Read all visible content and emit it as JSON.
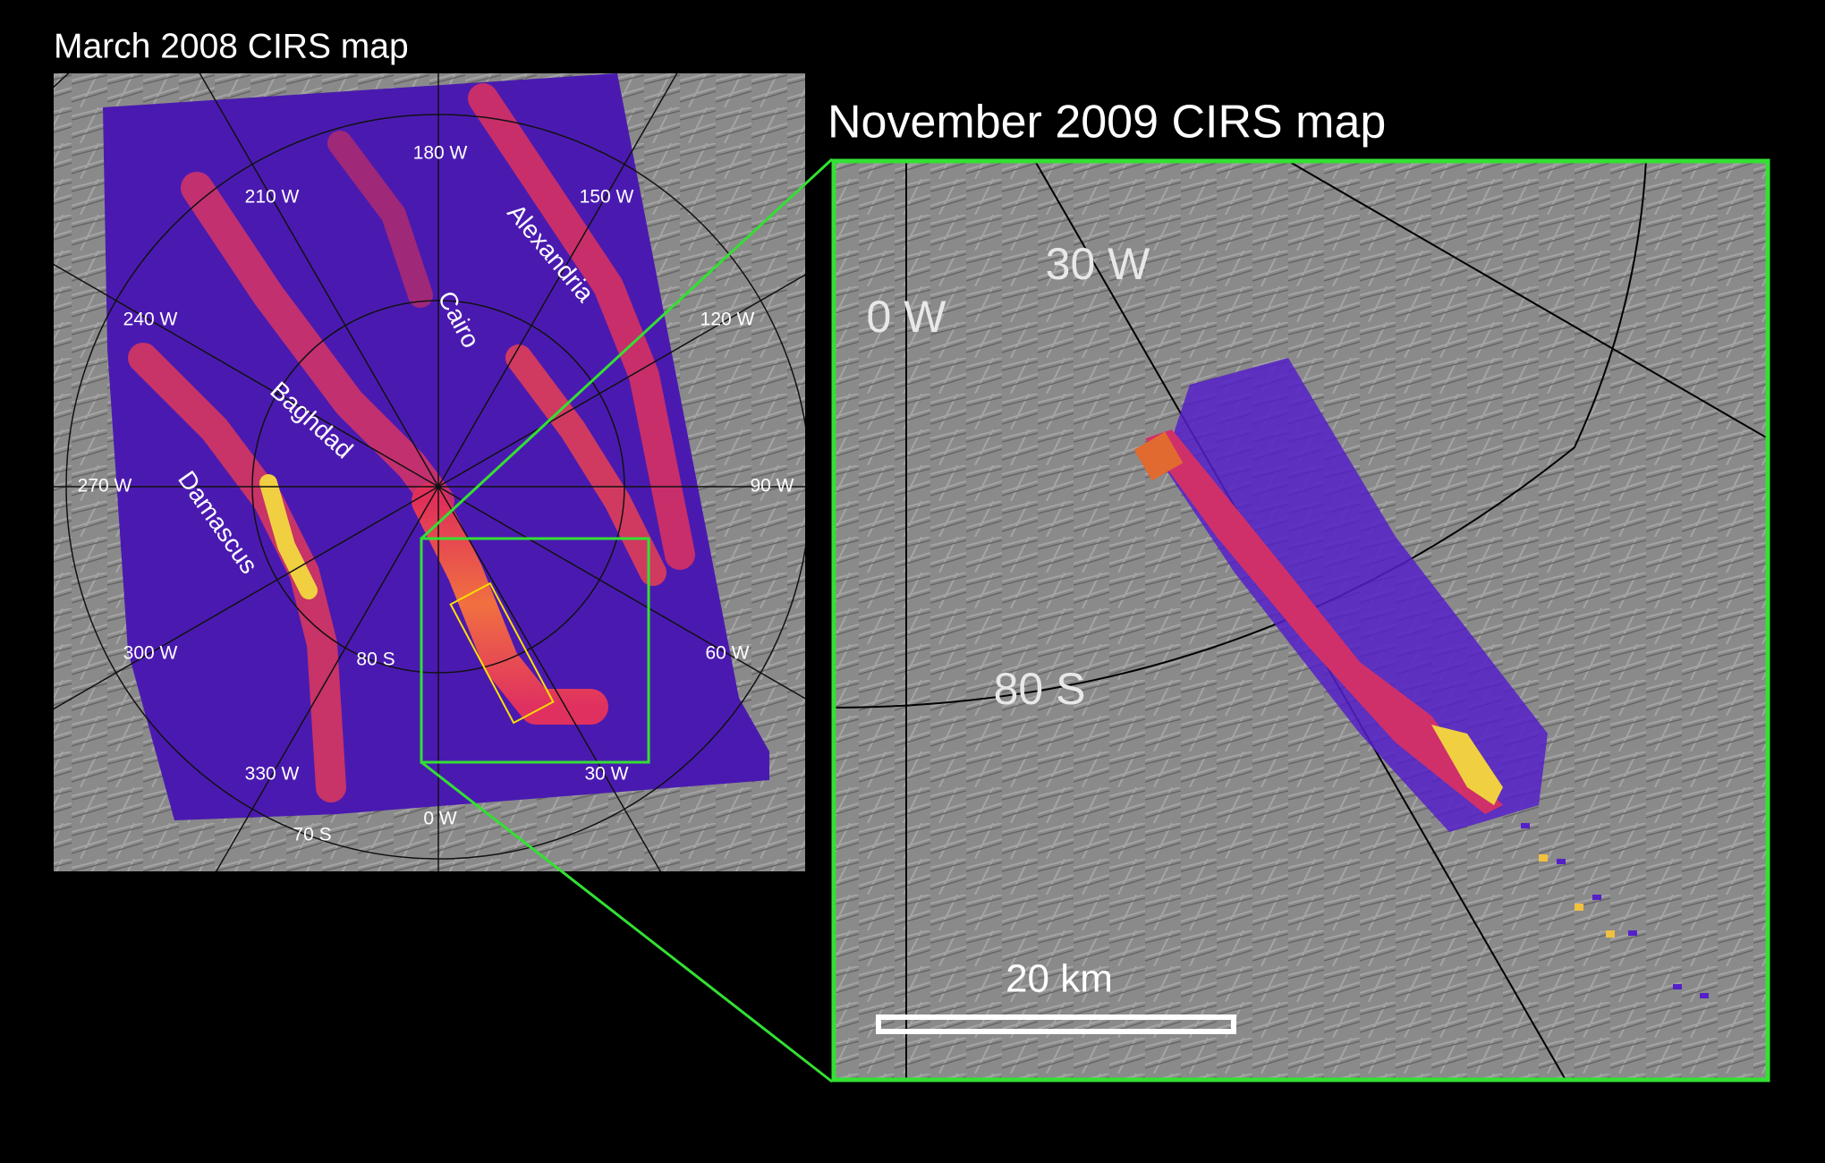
{
  "left_map": {
    "title": "March 2008 CIRS map",
    "longitude_labels": [
      "180 W",
      "150 W",
      "210 W",
      "240 W",
      "120 W",
      "270 W",
      "90 W",
      "300 W",
      "60 W",
      "330 W",
      "30 W",
      "0 W"
    ],
    "latitude_labels": [
      "80 S",
      "70 S"
    ],
    "feature_labels": [
      "Alexandria",
      "Cairo",
      "Baghdad",
      "Damascus"
    ]
  },
  "right_map": {
    "title": "November 2009 CIRS map",
    "longitude_labels": [
      "0 W",
      "30 W"
    ],
    "latitude_labels": [
      "80 S"
    ],
    "scale_bar": "20 km"
  }
}
